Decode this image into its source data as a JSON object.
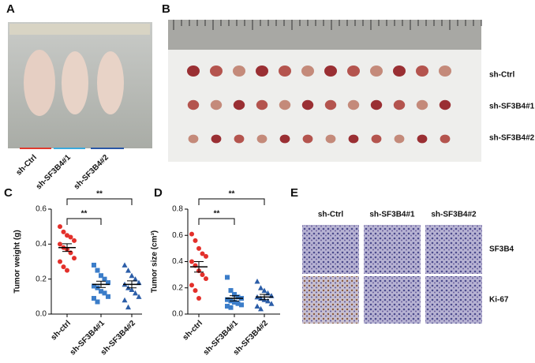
{
  "panel_labels": [
    "A",
    "B",
    "C",
    "D",
    "E"
  ],
  "panel_a": {
    "groups": [
      "sh-Ctrl",
      "sh-SF3B4#1",
      "sh-SF3B4#2"
    ]
  },
  "panel_b": {
    "rows": [
      "sh-Ctrl",
      "sh-SF3B4#1",
      "sh-SF3B4#2"
    ]
  },
  "chart_data": [
    {
      "type": "dotplot",
      "ylabel": "Tumor weight (g)",
      "categories": [
        "sh-ctrl",
        "sh-SF3B4#1",
        "sh-SF3B4#2"
      ],
      "ylim": [
        0,
        0.6
      ],
      "yticks": [
        0.0,
        0.2,
        0.4,
        0.6
      ],
      "groups": [
        {
          "color": "#e3302b",
          "marker": "circle",
          "values": [
            0.5,
            0.47,
            0.45,
            0.44,
            0.42,
            0.4,
            0.38,
            0.37,
            0.35,
            0.32,
            0.3,
            0.27,
            0.25
          ],
          "mean": 0.38,
          "sem": 0.022
        },
        {
          "color": "#3b7dc9",
          "marker": "square",
          "values": [
            0.28,
            0.25,
            0.22,
            0.2,
            0.18,
            0.16,
            0.15,
            0.13,
            0.12,
            0.1,
            0.09,
            0.07
          ],
          "mean": 0.17,
          "sem": 0.018
        },
        {
          "color": "#2c5ea8",
          "marker": "triangle",
          "values": [
            0.28,
            0.25,
            0.22,
            0.2,
            0.18,
            0.17,
            0.15,
            0.14,
            0.12,
            0.1,
            0.08,
            0.04
          ],
          "mean": 0.17,
          "sem": 0.02
        }
      ],
      "annotations": [
        "**",
        "**"
      ]
    },
    {
      "type": "dotplot",
      "ylabel": "Tumor size (cm³)",
      "categories": [
        "sh-ctrl",
        "sh-SF3B4#1",
        "sh-SF3B4#2"
      ],
      "ylim": [
        0,
        0.8
      ],
      "yticks": [
        0.0,
        0.2,
        0.4,
        0.6,
        0.8
      ],
      "groups": [
        {
          "color": "#e3302b",
          "marker": "circle",
          "values": [
            0.61,
            0.56,
            0.5,
            0.46,
            0.44,
            0.4,
            0.37,
            0.33,
            0.3,
            0.27,
            0.22,
            0.18,
            0.12
          ],
          "mean": 0.36,
          "sem": 0.04
        },
        {
          "color": "#3b7dc9",
          "marker": "square",
          "values": [
            0.28,
            0.18,
            0.15,
            0.13,
            0.12,
            0.11,
            0.1,
            0.09,
            0.08,
            0.07,
            0.06,
            0.05
          ],
          "mean": 0.12,
          "sem": 0.02
        },
        {
          "color": "#2c5ea8",
          "marker": "triangle",
          "values": [
            0.25,
            0.2,
            0.18,
            0.16,
            0.14,
            0.13,
            0.12,
            0.11,
            0.1,
            0.08,
            0.06,
            0.04
          ],
          "mean": 0.13,
          "sem": 0.02
        }
      ],
      "annotations": [
        "**",
        "**"
      ]
    }
  ],
  "panel_e": {
    "columns": [
      "sh-Ctrl",
      "sh-SF3B4#1",
      "sh-SF3B4#2"
    ],
    "rows": [
      "SF3B4",
      "Ki-67"
    ]
  }
}
